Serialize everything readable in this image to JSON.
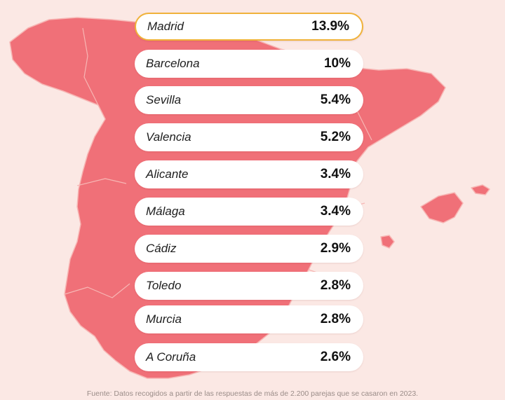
{
  "colors": {
    "background": "#fbe8e4",
    "map_fill": "#f07078",
    "map_border": "#f7b6b4",
    "row_background": "#ffffff",
    "highlight_border": "#f0b23a"
  },
  "chart_data": {
    "type": "table",
    "categories": [
      "Madrid",
      "Barcelona",
      "Sevilla",
      "Valencia",
      "Alicante",
      "Málaga",
      "Cádiz",
      "Toledo",
      "Murcia",
      "A Coruña"
    ],
    "values": [
      13.9,
      10,
      5.4,
      5.2,
      3.4,
      3.4,
      2.9,
      2.8,
      2.8,
      2.6
    ],
    "value_labels": [
      "13.9%",
      "10%",
      "5.4%",
      "5.2%",
      "3.4%",
      "3.4%",
      "2.9%",
      "2.8%",
      "2.8%",
      "2.6%"
    ],
    "highlighted": "Madrid",
    "background": "map of Spain"
  },
  "footnote": "Fuente: Datos recogidos a partir de las respuestas de más de 2.200 parejas que se casaron en 2023."
}
